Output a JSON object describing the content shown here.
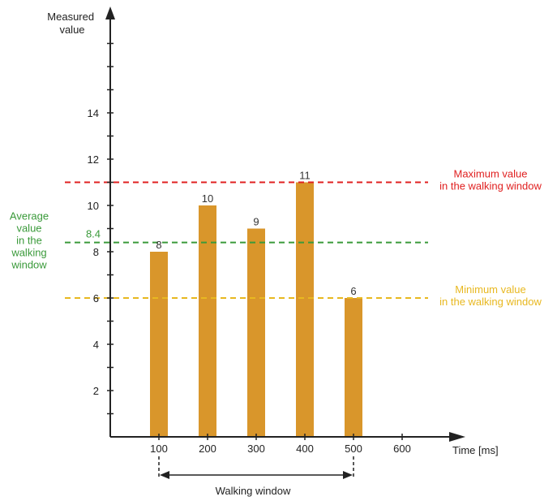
{
  "chart_data": {
    "type": "bar",
    "x": [
      100,
      200,
      300,
      400,
      500
    ],
    "values": [
      8,
      10,
      9,
      11,
      6
    ],
    "bar_color": "#d9962b",
    "ylabel_lines": [
      "Measured",
      "value"
    ],
    "xlabel": "Time [ms]",
    "xlim": [
      0,
      700
    ],
    "ylim": [
      0,
      18
    ],
    "x_ticks": [
      100,
      200,
      300,
      400,
      500,
      600
    ],
    "y_tick_labels": [
      2,
      4,
      6,
      8,
      10,
      12,
      14
    ],
    "y_minor_ticks": [
      1,
      3,
      5,
      7,
      9,
      11,
      13,
      15,
      16,
      17
    ],
    "grid": false,
    "reference_lines": [
      {
        "key": "maximum",
        "value": 11,
        "color": "#e02020",
        "label_lines": [
          "Maximum value",
          "in the walking window"
        ],
        "side": "right"
      },
      {
        "key": "average",
        "value": 8.4,
        "value_label": "8.4",
        "color": "#3a9a3a",
        "label_lines": [
          "Average",
          "value",
          "in the",
          "walking",
          "window"
        ],
        "side": "left"
      },
      {
        "key": "minimum",
        "value": 6,
        "color": "#e8b820",
        "label_lines": [
          "Minimum value",
          "in the walking window"
        ],
        "side": "right"
      }
    ],
    "walking_window": {
      "label": "Walking window",
      "from": 100,
      "to": 500
    }
  }
}
